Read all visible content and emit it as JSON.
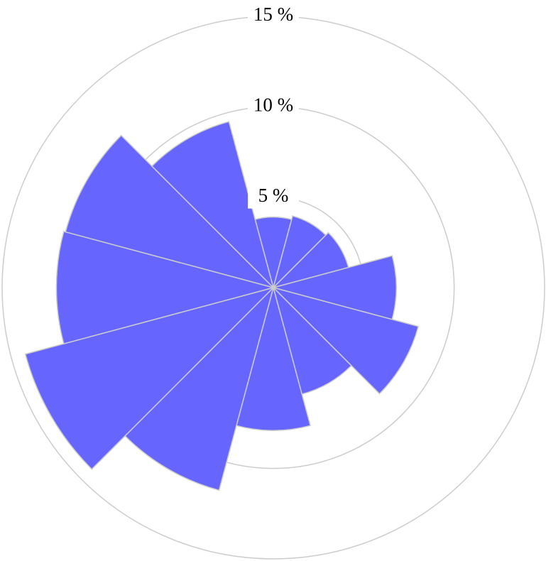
{
  "chart_data": {
    "type": "polar-bar",
    "values": [
      3.9,
      4.1,
      4.3,
      6.8,
      8.3,
      6.1,
      7.9,
      11.6,
      14.2,
      12.0,
      11.9,
      9.5
    ],
    "color": "#6666ff",
    "rlim": [
      0,
      15
    ],
    "rticks": [
      {
        "value": 5,
        "label": "5 %"
      },
      {
        "value": 10,
        "label": "10 %"
      },
      {
        "value": 15,
        "label": "15 %"
      }
    ],
    "grid": true
  }
}
